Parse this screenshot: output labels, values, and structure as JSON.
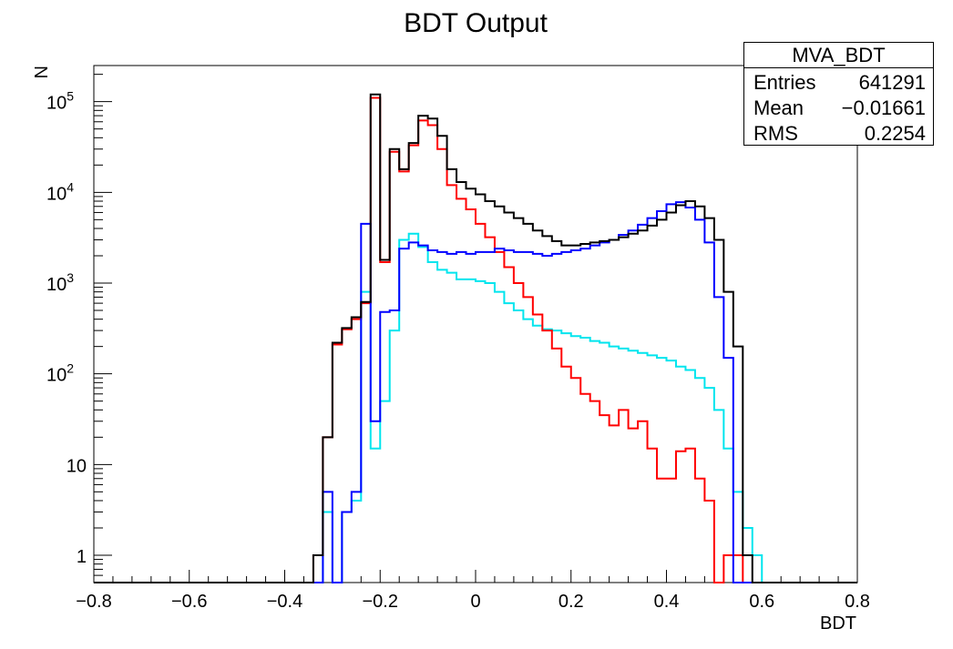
{
  "chart_data": {
    "type": "histogram",
    "title": "BDT Output",
    "xlabel": "BDT",
    "ylabel": "N",
    "xlim": [
      -0.8,
      0.8
    ],
    "ylim": [
      0.5,
      250000
    ],
    "yscale": "log",
    "x_ticks": [
      "−0.8",
      "−0.6",
      "−0.4",
      "−0.2",
      "0",
      "0.2",
      "0.4",
      "0.6",
      "0.8"
    ],
    "y_ticks": [
      {
        "value": 1,
        "base": "1",
        "exp": ""
      },
      {
        "value": 10,
        "base": "10",
        "exp": ""
      },
      {
        "value": 100,
        "base": "10",
        "exp": "2"
      },
      {
        "value": 1000,
        "base": "10",
        "exp": "3"
      },
      {
        "value": 10000,
        "base": "10",
        "exp": "4"
      },
      {
        "value": 100000,
        "base": "10",
        "exp": "5"
      }
    ],
    "bin_start": -0.34,
    "bin_width": 0.02,
    "series": [
      {
        "color": "#000000",
        "values": [
          1,
          20,
          220,
          320,
          420,
          620,
          120000,
          1800,
          30000,
          18000,
          35000,
          70000,
          65000,
          42000,
          18000,
          13000,
          11000,
          9500,
          8000,
          7000,
          6000,
          5200,
          4500,
          3800,
          3300,
          2900,
          2600,
          2600,
          2700,
          2800,
          2900,
          3000,
          3200,
          3500,
          3800,
          4300,
          5000,
          6000,
          7200,
          8000,
          7000,
          5200,
          3000,
          800,
          200,
          1
        ]
      },
      {
        "color": "#ff0000",
        "values": [
          1,
          20,
          210,
          310,
          400,
          600,
          110000,
          1700,
          28000,
          17000,
          33000,
          62000,
          55000,
          30000,
          12000,
          8500,
          6500,
          4500,
          3200,
          2200,
          1500,
          1000,
          700,
          450,
          300,
          190,
          120,
          90,
          60,
          50,
          35,
          27,
          40,
          25,
          30,
          15,
          7,
          7,
          14,
          15,
          7,
          4,
          0.5,
          1,
          1,
          0.5
        ]
      },
      {
        "color": "#0000ff",
        "values": [
          0.5,
          5,
          0.5,
          3,
          5,
          4500,
          30,
          480,
          500,
          2400,
          2800,
          2600,
          2300,
          2200,
          2100,
          2200,
          2100,
          2200,
          2200,
          2400,
          2300,
          2200,
          2200,
          2100,
          2000,
          2100,
          2200,
          2300,
          2400,
          2600,
          2800,
          3000,
          3400,
          3800,
          4400,
          5200,
          6200,
          7400,
          7800,
          6800,
          5000,
          2800,
          700,
          150
        ]
      },
      {
        "color": "#00e5ee",
        "values": [
          0.5,
          3,
          0.5,
          3,
          4,
          800,
          15,
          50,
          300,
          3000,
          3500,
          2500,
          1700,
          1400,
          1300,
          1100,
          1100,
          1050,
          1000,
          800,
          600,
          500,
          400,
          340,
          310,
          300,
          280,
          260,
          250,
          230,
          220,
          200,
          190,
          180,
          170,
          160,
          150,
          140,
          120,
          110,
          90,
          70,
          40,
          15,
          5,
          2,
          1
        ]
      }
    ]
  },
  "stats": {
    "title": "MVA_BDT",
    "rows": [
      {
        "label": "Entries",
        "value": "641291"
      },
      {
        "label": "Mean",
        "value": "−0.01661"
      },
      {
        "label": "RMS",
        "value": "0.2254"
      }
    ]
  }
}
